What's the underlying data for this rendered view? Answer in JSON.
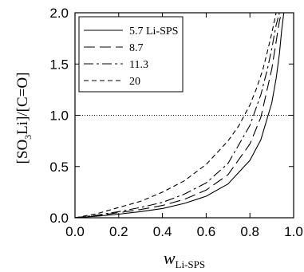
{
  "chart_data": {
    "type": "line",
    "xlabel_main": "w",
    "xlabel_sub": "Li-SPS",
    "ylabel_parts": [
      "[SO",
      "3",
      "Li]/[C=O]"
    ],
    "xlim": [
      0.0,
      1.0
    ],
    "ylim": [
      0.0,
      2.0
    ],
    "xticks": [
      0.0,
      0.2,
      0.4,
      0.6,
      0.8,
      1.0
    ],
    "xtick_labels": [
      "0.0",
      "0.2",
      "0.4",
      "0.6",
      "0.8",
      "1.0"
    ],
    "yticks": [
      0.0,
      0.5,
      1.0,
      1.5,
      2.0
    ],
    "ytick_labels": [
      "0.0",
      "0.5",
      "1.0",
      "1.5",
      "2.0"
    ],
    "reference_line": {
      "y": 1.0,
      "style": "dotted"
    },
    "legend_position": "top-left",
    "series": [
      {
        "name": "5.7 Li-SPS",
        "dash": "solid",
        "x": [
          0.0,
          0.1,
          0.2,
          0.3,
          0.4,
          0.5,
          0.6,
          0.7,
          0.8,
          0.85,
          0.9,
          0.92,
          0.935,
          0.945,
          0.955
        ],
        "y": [
          0.0,
          0.015,
          0.035,
          0.06,
          0.09,
          0.14,
          0.21,
          0.33,
          0.56,
          0.76,
          1.12,
          1.36,
          1.6,
          1.82,
          2.0
        ]
      },
      {
        "name": "8.7",
        "dash": "long-dash",
        "x": [
          0.0,
          0.1,
          0.2,
          0.3,
          0.4,
          0.5,
          0.6,
          0.7,
          0.8,
          0.85,
          0.9,
          0.92,
          0.935,
          0.945
        ],
        "y": [
          0.0,
          0.02,
          0.05,
          0.08,
          0.12,
          0.18,
          0.27,
          0.42,
          0.72,
          0.98,
          1.45,
          1.72,
          1.92,
          2.0
        ]
      },
      {
        "name": "11.3",
        "dash": "dash-dot",
        "x": [
          0.0,
          0.1,
          0.2,
          0.3,
          0.4,
          0.5,
          0.6,
          0.7,
          0.8,
          0.85,
          0.88,
          0.9,
          0.92,
          0.935
        ],
        "y": [
          0.0,
          0.025,
          0.06,
          0.1,
          0.15,
          0.23,
          0.34,
          0.53,
          0.9,
          1.2,
          1.45,
          1.65,
          1.88,
          2.0
        ]
      },
      {
        "name": "20",
        "dash": "short-dash",
        "x": [
          0.0,
          0.1,
          0.2,
          0.3,
          0.4,
          0.5,
          0.6,
          0.7,
          0.75,
          0.8,
          0.83,
          0.86,
          0.88,
          0.9,
          0.92
        ],
        "y": [
          0.0,
          0.04,
          0.1,
          0.16,
          0.25,
          0.36,
          0.52,
          0.75,
          0.9,
          1.1,
          1.26,
          1.45,
          1.62,
          1.8,
          2.0
        ]
      }
    ]
  }
}
